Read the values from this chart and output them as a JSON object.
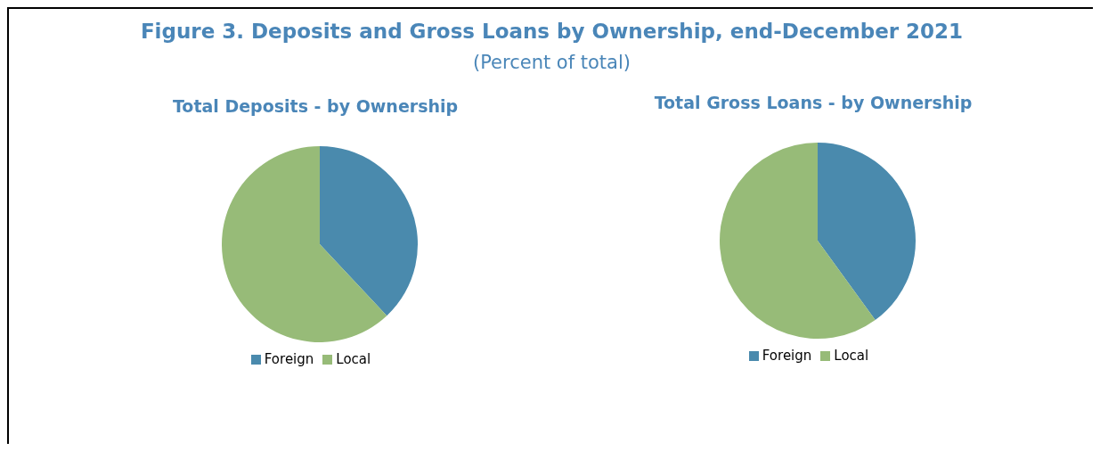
{
  "chart_data": [
    {
      "type": "pie",
      "title": "Total Deposits - by Ownership",
      "annotations": [
        "Figure 3. Deposits and Gross Loans by Ownership, end-December 2021",
        "(Percent of total)"
      ],
      "categories": [
        "Foreign",
        "Local"
      ],
      "values": [
        38,
        62
      ],
      "colors": [
        "#4a8aad",
        "#97bb78"
      ],
      "legend": "bottom"
    },
    {
      "type": "pie",
      "title": "Total Gross Loans - by Ownership",
      "categories": [
        "Foreign",
        "Local"
      ],
      "values": [
        40,
        60
      ],
      "colors": [
        "#4a8aad",
        "#97bb78"
      ],
      "legend": "bottom"
    }
  ]
}
